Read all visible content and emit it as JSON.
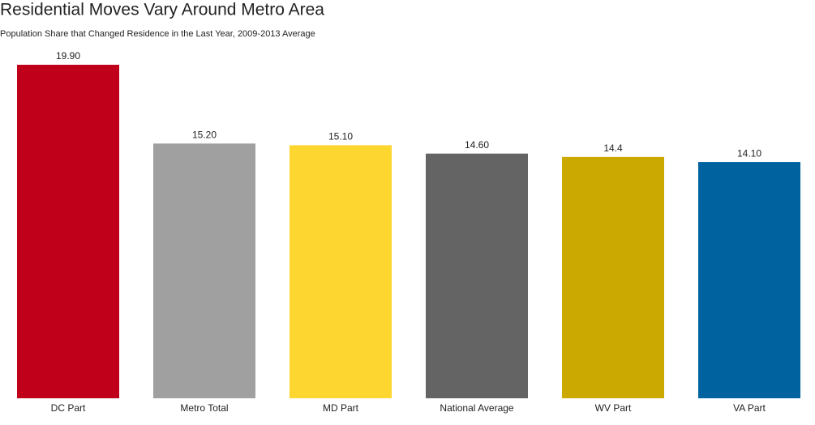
{
  "chart_data": {
    "type": "bar",
    "title": "Residential Moves Vary Around Metro Area",
    "subtitle": "Population Share that Changed Residence in the Last Year, 2009-2013 Average",
    "categories": [
      "DC Part",
      "Metro Total",
      "MD Part",
      "National Average",
      "WV Part",
      "VA Part"
    ],
    "values": [
      19.9,
      15.2,
      15.1,
      14.6,
      14.4,
      14.1
    ],
    "value_labels": [
      "19.90",
      "15.20",
      "15.10",
      "14.60",
      "14.4",
      "14.10"
    ],
    "colors": [
      "#c0001a",
      "#a0a0a0",
      "#fdd630",
      "#646464",
      "#cca900",
      "#0063a0"
    ]
  }
}
